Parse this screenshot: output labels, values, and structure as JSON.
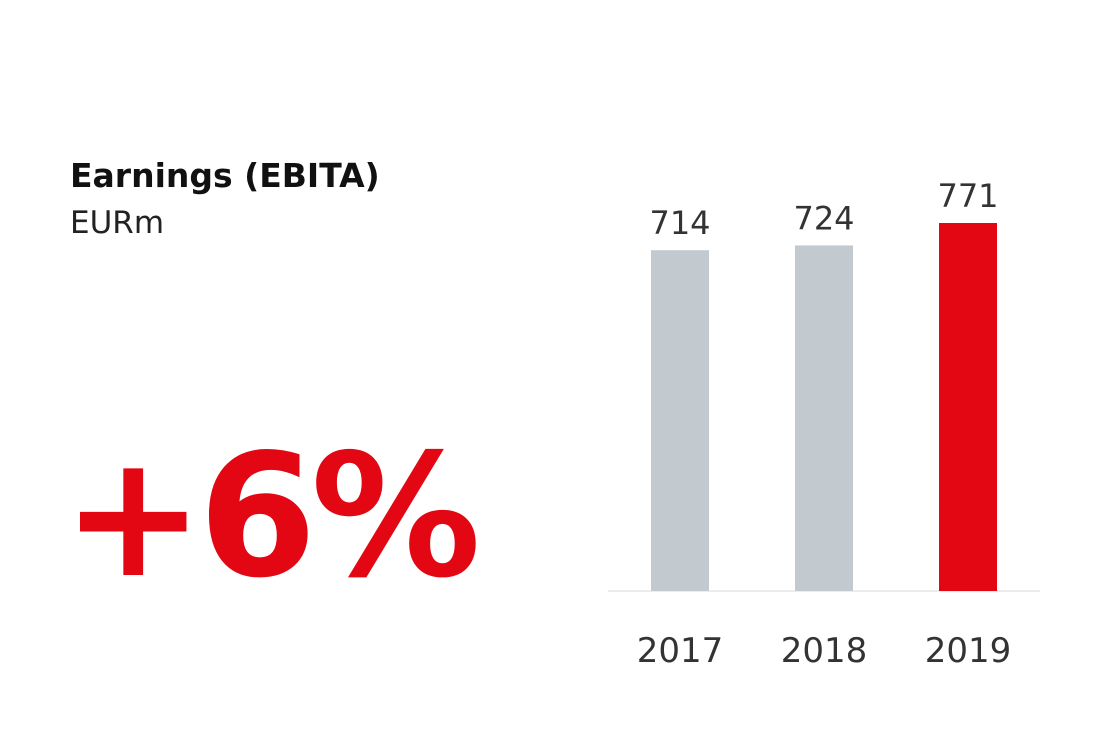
{
  "header": {
    "title": "Earnings (EBITA)",
    "unit": "EURm"
  },
  "highlight": {
    "change": "+6%",
    "color": "#e30613"
  },
  "chart_data": {
    "type": "bar",
    "title": "Earnings (EBITA)",
    "ylabel": "EURm",
    "categories": [
      "2017",
      "2018",
      "2019"
    ],
    "values": [
      714,
      724,
      771
    ],
    "bar_colors": [
      "#c2c9cf",
      "#c2c9cf",
      "#e30613"
    ],
    "ylim": [
      0,
      771
    ],
    "grid": false,
    "legend": "none"
  }
}
